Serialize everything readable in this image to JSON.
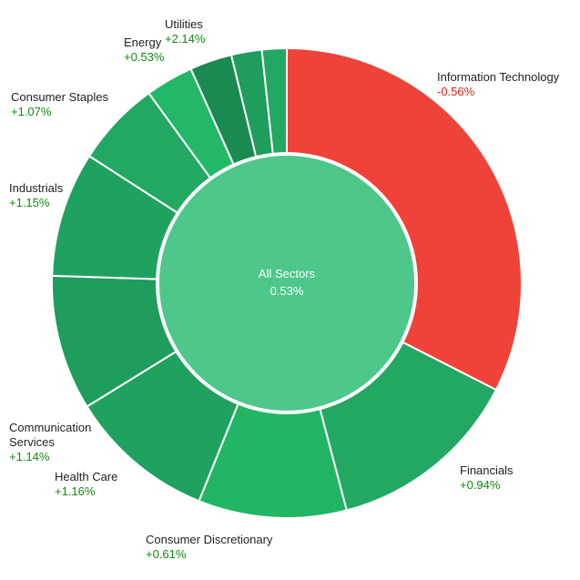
{
  "chart_data": {
    "type": "pie",
    "center": {
      "label": "All Sectors",
      "value": "0.53%",
      "color": "#4dc78a"
    },
    "sectors": [
      {
        "name": "Information Technology",
        "change": "-0.56%",
        "share": 32.5,
        "color": "#ef4238",
        "label_color": "#e0221a"
      },
      {
        "name": "Financials",
        "change": "+0.94%",
        "share": 13.4,
        "color": "#22a862",
        "label_color": "#118811"
      },
      {
        "name": "Consumer Discretionary",
        "change": "+0.61%",
        "share": 10.2,
        "color": "#21b565",
        "label_color": "#118811"
      },
      {
        "name": "Health Care",
        "change": "+1.16%",
        "share": 10.1,
        "color": "#1fa25f",
        "label_color": "#118811"
      },
      {
        "name": "Communication Services",
        "change": "+1.14%",
        "share": 9.3,
        "color": "#1e9d5c",
        "label_color": "#118811"
      },
      {
        "name": "Industrials",
        "change": "+1.15%",
        "share": 8.6,
        "color": "#1fa25f",
        "label_color": "#118811"
      },
      {
        "name": "Consumer Staples",
        "change": "+1.07%",
        "share": 5.9,
        "color": "#22a862",
        "label_color": "#118811"
      },
      {
        "name": "Energy",
        "change": "+0.53%",
        "share": 3.3,
        "color": "#23b868",
        "label_color": "#118811"
      },
      {
        "name": "",
        "change": "",
        "share": 2.9,
        "color": "#1a8a50",
        "label_color": "#118811"
      },
      {
        "name": "",
        "change": "",
        "share": 2.1,
        "color": "#1e9d5c",
        "label_color": "#118811"
      },
      {
        "name": "Utilities",
        "change": "+2.14%",
        "share": 1.7,
        "color": "#22a862",
        "label_color": "#118811"
      }
    ]
  }
}
